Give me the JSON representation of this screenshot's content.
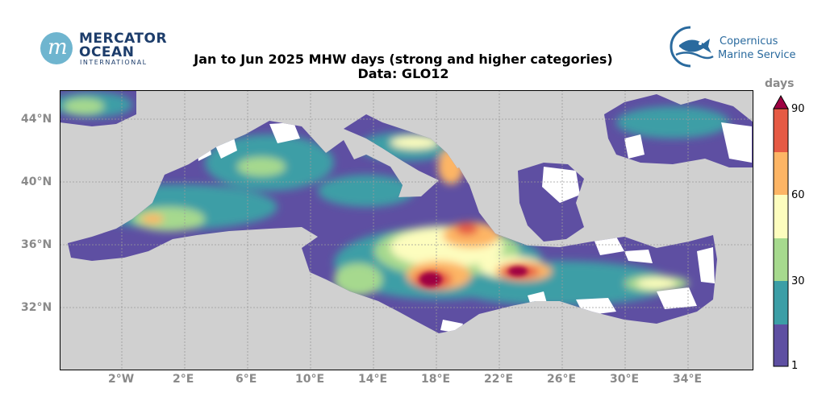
{
  "title_line1": "Jan to Jun 2025 MHW days (strong and higher categories)",
  "title_line2": "Data: GLO12",
  "logos": {
    "left": {
      "line1": "MERCATOR",
      "line2": "OCEAN",
      "line3": "INTERNATIONAL",
      "color": "#1d3d6b",
      "accent": "#6fb5cf"
    },
    "right": {
      "line1": "Copernicus",
      "line2": "Marine Service",
      "color": "#2a6a9e"
    }
  },
  "map": {
    "region": "Mediterranean Sea",
    "land_color": "#d0d0d0",
    "no_data_color": "#ffffff",
    "grid": true,
    "lat_labels": [
      "44°N",
      "40°N",
      "36°N",
      "32°N"
    ],
    "lon_labels": [
      "2°W",
      "2°E",
      "6°E",
      "10°E",
      "14°E",
      "18°E",
      "22°E",
      "26°E",
      "30°E",
      "34°E"
    ],
    "hotspots": [
      {
        "area": "Ionian Sea / Gulf of Sidra",
        "level": "60-90"
      },
      {
        "area": "South of Crete / Levantine west",
        "level": "60-90"
      },
      {
        "area": "Adriatic east coast",
        "level": "60-75"
      },
      {
        "area": "Balearic / Alboran",
        "level": "45-75"
      }
    ]
  },
  "colorbar": {
    "title": "days",
    "labels": [
      "90",
      "60",
      "30",
      "1"
    ],
    "bins": [
      {
        "from": 1,
        "to": 15,
        "color": "#5e4fa2"
      },
      {
        "from": 15,
        "to": 30,
        "color": "#3c9ea6"
      },
      {
        "from": 30,
        "to": 45,
        "color": "#a6d98e"
      },
      {
        "from": 45,
        "to": 60,
        "color": "#fdfdbe"
      },
      {
        "from": 60,
        "to": 75,
        "color": "#fdb565"
      },
      {
        "from": 75,
        "to": 90,
        "color": "#e65a44"
      },
      {
        "from": 90,
        "to": 91,
        "color": "#9e0142"
      }
    ]
  }
}
